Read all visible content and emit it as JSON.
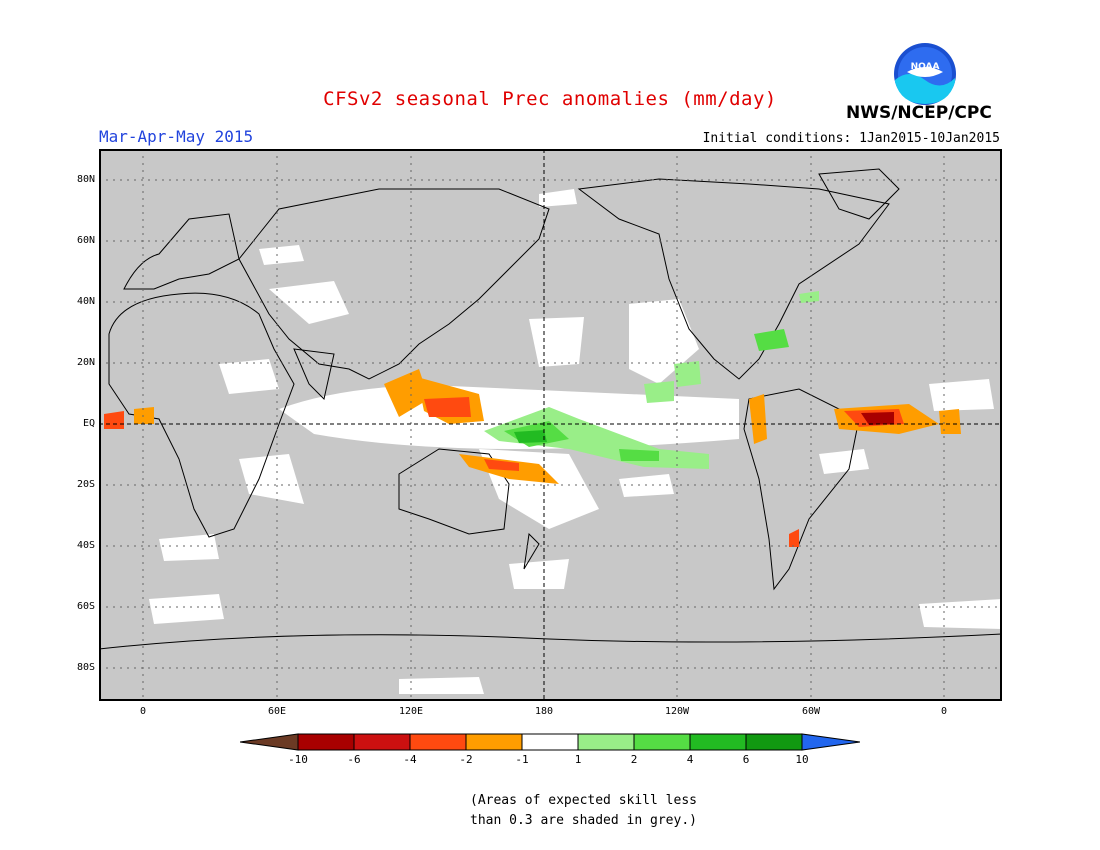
{
  "header": {
    "title": "CFSv2 seasonal Prec anomalies (mm/day)",
    "period": "Mar-Apr-May 2015",
    "initial_conditions": "Initial conditions: 1Jan2015-10Jan2015",
    "agency": "NWS/NCEP/CPC",
    "logo_text": "NOAA"
  },
  "map": {
    "lat_labels": [
      "80N",
      "60N",
      "40N",
      "20N",
      "EQ",
      "20S",
      "40S",
      "60S",
      "80S"
    ],
    "lon_labels": [
      "0",
      "60E",
      "120E",
      "180",
      "120W",
      "60W",
      "0"
    ],
    "background_color": "#c8c8c8"
  },
  "colorbar": {
    "labels": [
      "-10",
      "-6",
      "-4",
      "-2",
      "-1",
      "1",
      "2",
      "4",
      "6",
      "10"
    ],
    "colors": [
      "#6b3a24",
      "#a80000",
      "#cc1010",
      "#ff4a10",
      "#ff9d00",
      "#ffffff",
      "#99ee88",
      "#55dd44",
      "#22bb22",
      "#119911",
      "#2266ee"
    ]
  },
  "note": {
    "line1": "(Areas of expected skill less",
    "line2": "than 0.3 are shaded in grey.)"
  }
}
